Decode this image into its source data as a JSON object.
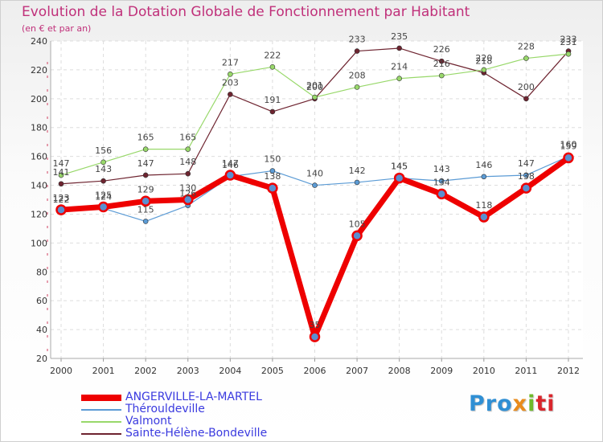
{
  "header": {
    "title": "Evolution de la Dotation Globale de Fonctionnement par Habitant",
    "subtitle": "(en € et par an)"
  },
  "logo": {
    "text": "Proxiti",
    "parts": [
      "Pro",
      "x",
      "i",
      "ti"
    ]
  },
  "chart_data": {
    "type": "line",
    "title": "Evolution de la Dotation Globale de Fonctionnement par Habitant",
    "subtitle": "(en € et par an)",
    "xlabel": "",
    "ylabel": "",
    "ylim": [
      20,
      240
    ],
    "yticks": [
      20,
      40,
      60,
      80,
      100,
      120,
      140,
      160,
      180,
      200,
      220,
      240
    ],
    "grid": true,
    "legend_position": "bottom-left",
    "categories": [
      "2000",
      "2001",
      "2002",
      "2003",
      "2004",
      "2005",
      "2006",
      "2007",
      "2008",
      "2009",
      "2010",
      "2011",
      "2012"
    ],
    "series": [
      {
        "name": "ANGERVILLE-LA-MARTEL",
        "color": "#ee0000",
        "values": [
          123,
          125,
          129,
          130,
          147,
          138,
          35,
          105,
          145,
          134,
          118,
          138,
          159
        ]
      },
      {
        "name": "Thérouldeville",
        "color": "#5b9bd5",
        "values": [
          122,
          124,
          115,
          126,
          146,
          150,
          140,
          142,
          145,
          143,
          146,
          147,
          160
        ]
      },
      {
        "name": "Valmont",
        "color": "#98d86a",
        "values": [
          147,
          156,
          165,
          165,
          217,
          222,
          201,
          208,
          214,
          216,
          220,
          228,
          231
        ]
      },
      {
        "name": "Sainte-Hélène-Bondeville",
        "color": "#6e2430",
        "values": [
          141,
          143,
          147,
          148,
          203,
          191,
          200,
          233,
          235,
          226,
          218,
          200,
          233
        ]
      }
    ]
  }
}
